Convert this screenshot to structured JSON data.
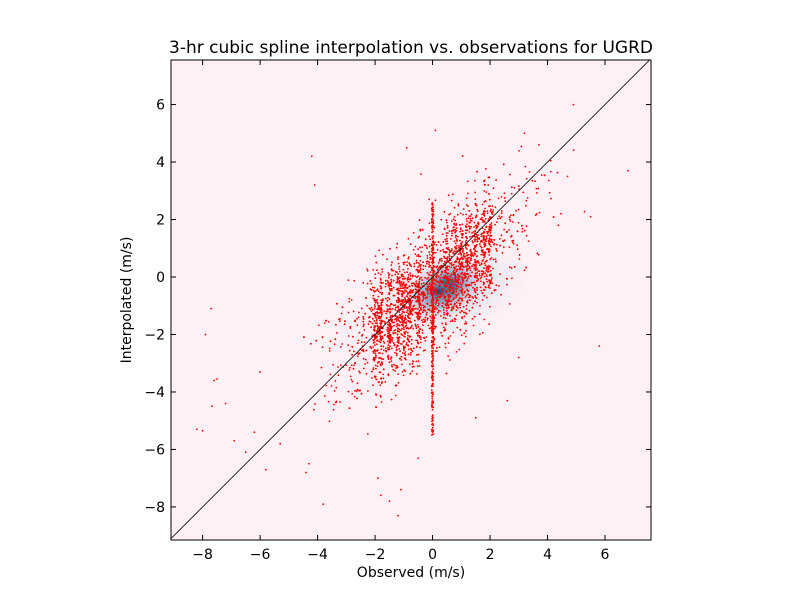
{
  "chart_data": {
    "type": "scatter",
    "title": "3-hr cubic spline interpolation vs. observations for UGRD",
    "xlabel": "Observed (m/s)",
    "ylabel": "Interpolated (m/s)",
    "xlim": [
      -9.1,
      7.6
    ],
    "ylim": [
      -9.15,
      7.55
    ],
    "xticks": [
      -8,
      -6,
      -4,
      -2,
      0,
      2,
      4,
      6
    ],
    "yticks": [
      -8,
      -6,
      -4,
      -2,
      0,
      2,
      4,
      6
    ],
    "xtick_labels": [
      "−8",
      "−6",
      "−4",
      "−2",
      "0",
      "2",
      "4",
      "6"
    ],
    "ytick_labels": [
      "−8",
      "−6",
      "−4",
      "−2",
      "0",
      "2",
      "4",
      "6"
    ],
    "grid": false,
    "background_density": {
      "description": "Kernel density shading of observed vs interpolated values",
      "peak": [
        0.4,
        -0.4
      ],
      "colormap": [
        "#fff0f5",
        "#c4d4e6",
        "#5d7da0",
        "#1e3556"
      ]
    },
    "reference_line": {
      "slope": 1,
      "intercept": 0,
      "color": "#000000"
    },
    "series": [
      {
        "marker_color": "#ff0000",
        "approx_point_count": 3000,
        "distribution": {
          "center": [
            0.0,
            -0.4
          ],
          "correlation_slope": 0.75,
          "x_spread": 1.6,
          "y_residual_spread": 1.0,
          "cluster_columns_x": [
            -2.0,
            -1.8,
            -1.5,
            -1.2,
            -1.0,
            -0.8,
            -0.5,
            0.0,
            0.5,
            0.8,
            1.0,
            1.2,
            1.5,
            1.8,
            2.0
          ],
          "zero_column_y_range": [
            -5.5,
            2.6
          ]
        },
        "outliers": [
          [
            -8.2,
            -5.3
          ],
          [
            -8.0,
            -5.35
          ],
          [
            -7.9,
            -2.0
          ],
          [
            -7.7,
            -1.1
          ],
          [
            -7.6,
            -3.6
          ],
          [
            -7.5,
            -3.55
          ],
          [
            -7.2,
            -4.4
          ],
          [
            -6.9,
            -5.7
          ],
          [
            -6.5,
            -6.1
          ],
          [
            -6.2,
            -5.4
          ],
          [
            -6.0,
            -3.3
          ],
          [
            -5.8,
            -6.7
          ],
          [
            -5.3,
            -5.8
          ],
          [
            -4.4,
            -6.8
          ],
          [
            -4.3,
            -6.5
          ],
          [
            -4.2,
            4.2
          ],
          [
            -4.1,
            3.2
          ],
          [
            -3.8,
            -7.9
          ],
          [
            -1.9,
            -7.0
          ],
          [
            -1.8,
            -7.6
          ],
          [
            -1.5,
            -7.8
          ],
          [
            -1.2,
            -8.3
          ],
          [
            -1.1,
            -7.4
          ],
          [
            0.1,
            5.1
          ],
          [
            -0.9,
            4.5
          ],
          [
            -0.5,
            -6.3
          ],
          [
            3.7,
            4.6
          ],
          [
            4.9,
            6.0
          ],
          [
            6.8,
            3.7
          ],
          [
            5.8,
            -2.4
          ],
          [
            5.5,
            2.1
          ],
          [
            4.7,
            3.5
          ],
          [
            3.2,
            5.0
          ],
          [
            2.6,
            -4.3
          ],
          [
            1.5,
            -4.9
          ],
          [
            3.0,
            -2.8
          ]
        ]
      }
    ]
  }
}
